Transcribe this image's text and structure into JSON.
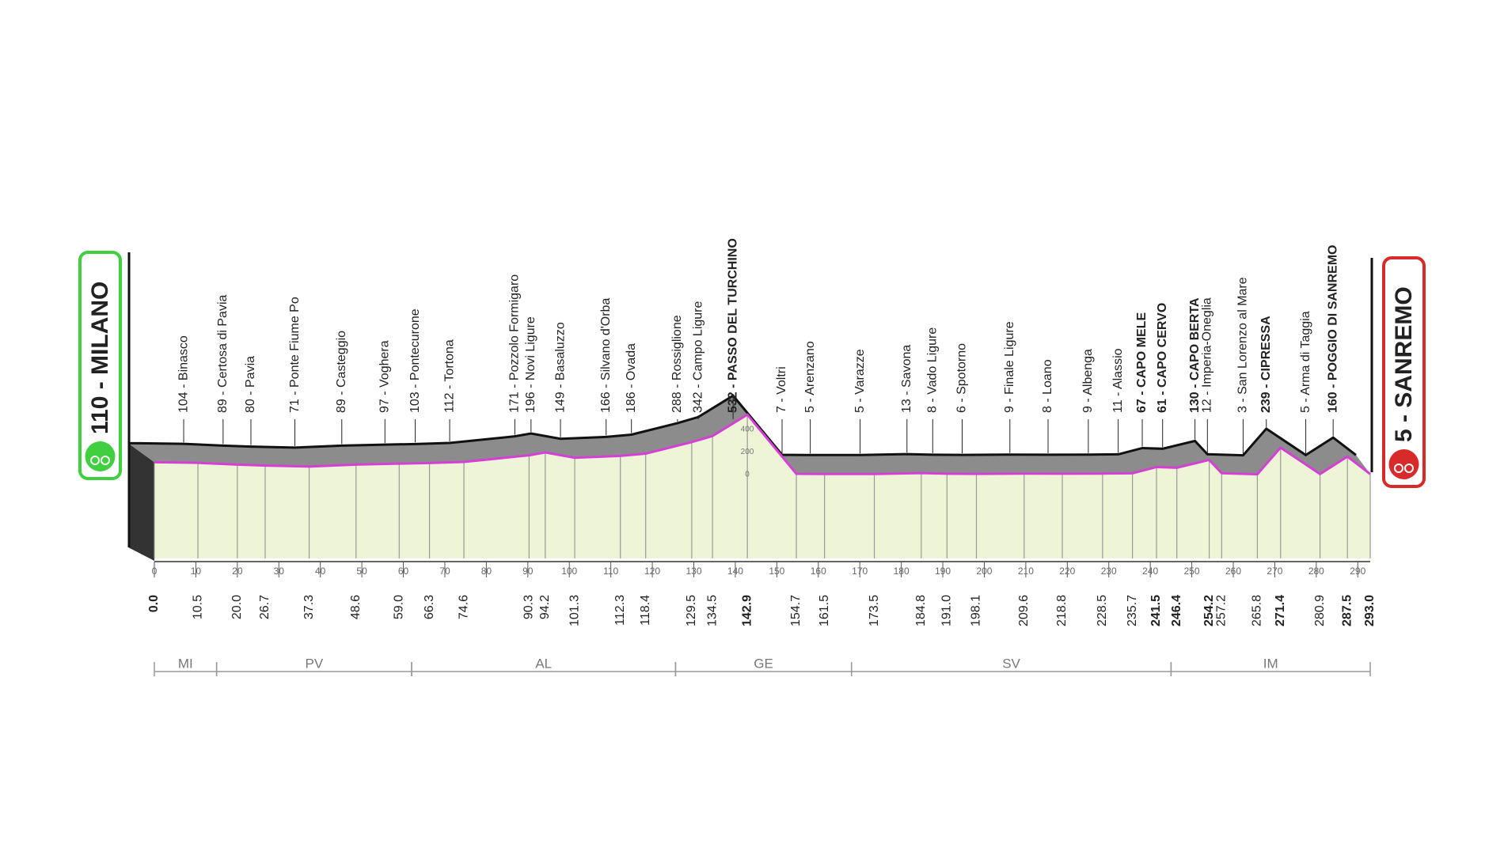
{
  "chart_data": {
    "type": "profile",
    "xlim": [
      0,
      293
    ],
    "xticks": [
      0,
      10,
      20,
      30,
      40,
      50,
      60,
      70,
      80,
      90,
      100,
      110,
      120,
      130,
      140,
      150,
      160,
      170,
      180,
      190,
      200,
      210,
      220,
      230,
      240,
      250,
      260,
      270,
      280,
      290
    ],
    "ylim": [
      0,
      400
    ],
    "yticks": [
      0,
      200,
      400
    ],
    "colors": {
      "profile": "#d63fd6",
      "shadow": "#8c8c8c",
      "ground": "#eef5d6",
      "start": "#3fcf3f",
      "finish": "#d82a2a"
    },
    "waypoints": [
      {
        "label": "110 - MILANO",
        "elevation": 110,
        "km": 0,
        "km_label": "0.0",
        "climb": true
      },
      {
        "label": "104 - Binasco",
        "elevation": 104,
        "km": 10.5,
        "km_label": "10.5"
      },
      {
        "label": "89 - Certosa di Pavia",
        "elevation": 89,
        "km": 20.0,
        "km_label": "20.0"
      },
      {
        "label": "80 - Pavia",
        "elevation": 80,
        "km": 26.7,
        "km_label": "26.7"
      },
      {
        "label": "71 - Ponte Fiume Po",
        "elevation": 71,
        "km": 37.3,
        "km_label": "37.3"
      },
      {
        "label": "89 - Casteggio",
        "elevation": 89,
        "km": 48.6,
        "km_label": "48.6"
      },
      {
        "label": "97 - Voghera",
        "elevation": 97,
        "km": 59.0,
        "km_label": "59.0"
      },
      {
        "label": "103 - Pontecurone",
        "elevation": 103,
        "km": 66.3,
        "km_label": "66.3"
      },
      {
        "label": "112 - Tortona",
        "elevation": 112,
        "km": 74.6,
        "km_label": "74.6"
      },
      {
        "label": "171 - Pozzolo Formigaro",
        "elevation": 171,
        "km": 90.3,
        "km_label": "90.3"
      },
      {
        "label": "196 - Novi Ligure",
        "elevation": 196,
        "km": 94.2,
        "km_label": "94.2"
      },
      {
        "label": "149 - Basaluzzo",
        "elevation": 149,
        "km": 101.3,
        "km_label": "101.3"
      },
      {
        "label": "166 - Silvano d'Orba",
        "elevation": 166,
        "km": 112.3,
        "km_label": "112.3"
      },
      {
        "label": "186 - Ovada",
        "elevation": 186,
        "km": 118.4,
        "km_label": "118.4"
      },
      {
        "label": "288 - Rossiglione",
        "elevation": 288,
        "km": 129.5,
        "km_label": "129.5"
      },
      {
        "label": "342 - Campo Ligure",
        "elevation": 342,
        "km": 134.5,
        "km_label": "134.5"
      },
      {
        "label": "532 - PASSO DEL TURCHINO",
        "elevation": 532,
        "km": 142.9,
        "km_label": "142.9",
        "climb": true
      },
      {
        "label": "7 - Voltri",
        "elevation": 7,
        "km": 154.7,
        "km_label": "154.7"
      },
      {
        "label": "5 - Arenzano",
        "elevation": 5,
        "km": 161.5,
        "km_label": "161.5"
      },
      {
        "label": "5 - Varazze",
        "elevation": 5,
        "km": 173.5,
        "km_label": "173.5"
      },
      {
        "label": "13 - Savona",
        "elevation": 13,
        "km": 184.8,
        "km_label": "184.8"
      },
      {
        "label": "8 - Vado Ligure",
        "elevation": 8,
        "km": 191.0,
        "km_label": "191.0"
      },
      {
        "label": "6 - Spotorno",
        "elevation": 6,
        "km": 198.1,
        "km_label": "198.1"
      },
      {
        "label": "9 - Finale Ligure",
        "elevation": 9,
        "km": 209.6,
        "km_label": "209.6"
      },
      {
        "label": "8 - Loano",
        "elevation": 8,
        "km": 218.8,
        "km_label": "218.8"
      },
      {
        "label": "9 - Albenga",
        "elevation": 9,
        "km": 228.5,
        "km_label": "228.5"
      },
      {
        "label": "11 - Alassio",
        "elevation": 11,
        "km": 235.7,
        "km_label": "235.7"
      },
      {
        "label": "67 - CAPO MELE",
        "elevation": 67,
        "km": 241.5,
        "km_label": "241.5",
        "climb": true
      },
      {
        "label": "61 - CAPO CERVO",
        "elevation": 61,
        "km": 246.4,
        "km_label": "246.4",
        "climb": true
      },
      {
        "label": "130 - CAPO BERTA",
        "elevation": 130,
        "km": 254.2,
        "km_label": "254.2",
        "climb": true
      },
      {
        "label": "12 - Imperia-Oneglia",
        "elevation": 12,
        "km": 257.2,
        "km_label": "257.2"
      },
      {
        "label": "3 - San Lorenzo al Mare",
        "elevation": 3,
        "km": 265.8,
        "km_label": "265.8"
      },
      {
        "label": "239 - CIPRESSA",
        "elevation": 239,
        "km": 271.4,
        "km_label": "271.4",
        "climb": true
      },
      {
        "label": "5 - Arma di Taggia",
        "elevation": 5,
        "km": 280.9,
        "km_label": "280.9"
      },
      {
        "label": "160 - POGGIO DI SANREMO",
        "elevation": 160,
        "km": 287.5,
        "km_label": "287.5",
        "climb": true
      },
      {
        "label": "5 - SANREMO",
        "elevation": 5,
        "km": 293,
        "km_label": "293.0",
        "climb": true
      }
    ],
    "provinces": [
      {
        "label": "MI",
        "start": 0,
        "end": 15
      },
      {
        "label": "PV",
        "start": 15,
        "end": 62
      },
      {
        "label": "AL",
        "start": 62,
        "end": 125.6
      },
      {
        "label": "GE",
        "start": 125.6,
        "end": 168
      },
      {
        "label": "SV",
        "start": 168,
        "end": 245
      },
      {
        "label": "IM",
        "start": 245,
        "end": 293
      }
    ]
  }
}
